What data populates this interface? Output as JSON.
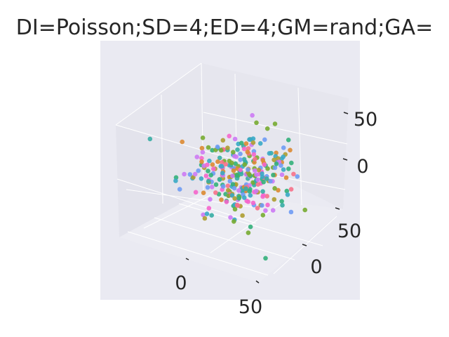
{
  "chart_data": {
    "type": "scatter",
    "projection": "3d",
    "title": "DI=Poisson;SD=4;ED=4;GM=rand;GA=",
    "xlabel": "",
    "ylabel": "",
    "zlabel": "",
    "x_ticks": [
      "0",
      "50"
    ],
    "y_ticks": [
      "0",
      "50"
    ],
    "z_ticks": [
      "0",
      "50"
    ],
    "xlim": [
      -60,
      60
    ],
    "ylim": [
      -60,
      60
    ],
    "zlim": [
      -60,
      60
    ],
    "grid": true,
    "legend": "none",
    "n_points": 300,
    "palette": [
      "#f77189",
      "#dc8932",
      "#ae9d31",
      "#77ab31",
      "#33b07a",
      "#36ada4",
      "#38a9c5",
      "#6e9bf4",
      "#cc7af4",
      "#f565cc"
    ],
    "background": "#eaeaf2",
    "point_sampling_note": ""
  }
}
